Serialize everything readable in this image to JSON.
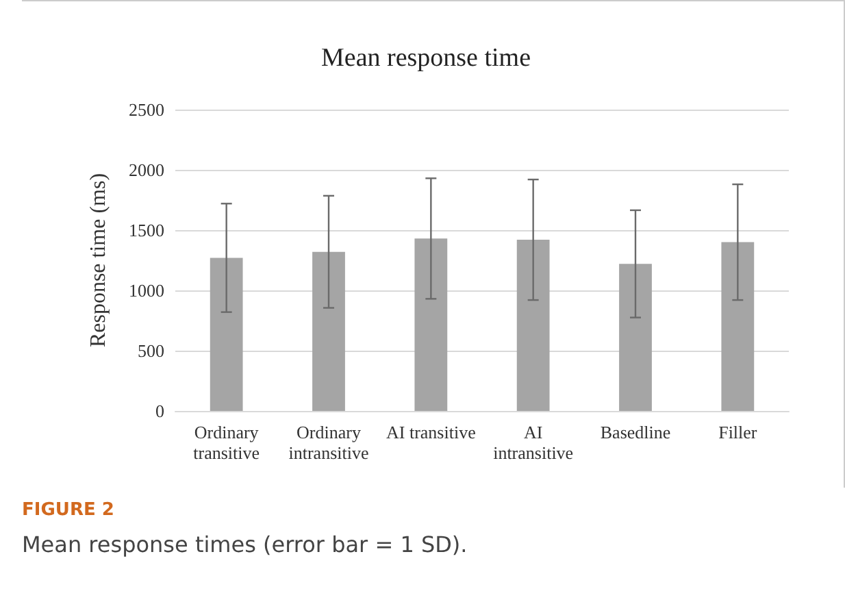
{
  "chart_data": {
    "type": "bar",
    "title": "Mean response time",
    "ylabel": "Response time (ms)",
    "categories": [
      "Ordinary\ntransitive",
      "Ordinary\nintransitive",
      "AI transitive",
      "AI\nintransitive",
      "Basedline",
      "Filler"
    ],
    "values": [
      1270,
      1320,
      1430,
      1420,
      1220,
      1400
    ],
    "errors": [
      450,
      465,
      500,
      500,
      445,
      480
    ],
    "color": "#a5a5a5",
    "ylim": [
      0,
      2500
    ],
    "yticks": [
      0,
      500,
      1000,
      1500,
      2000,
      2500
    ],
    "grid": "y",
    "annotations": [
      "FIGURE 2",
      "Mean response times (error bar = 1 SD)."
    ]
  }
}
